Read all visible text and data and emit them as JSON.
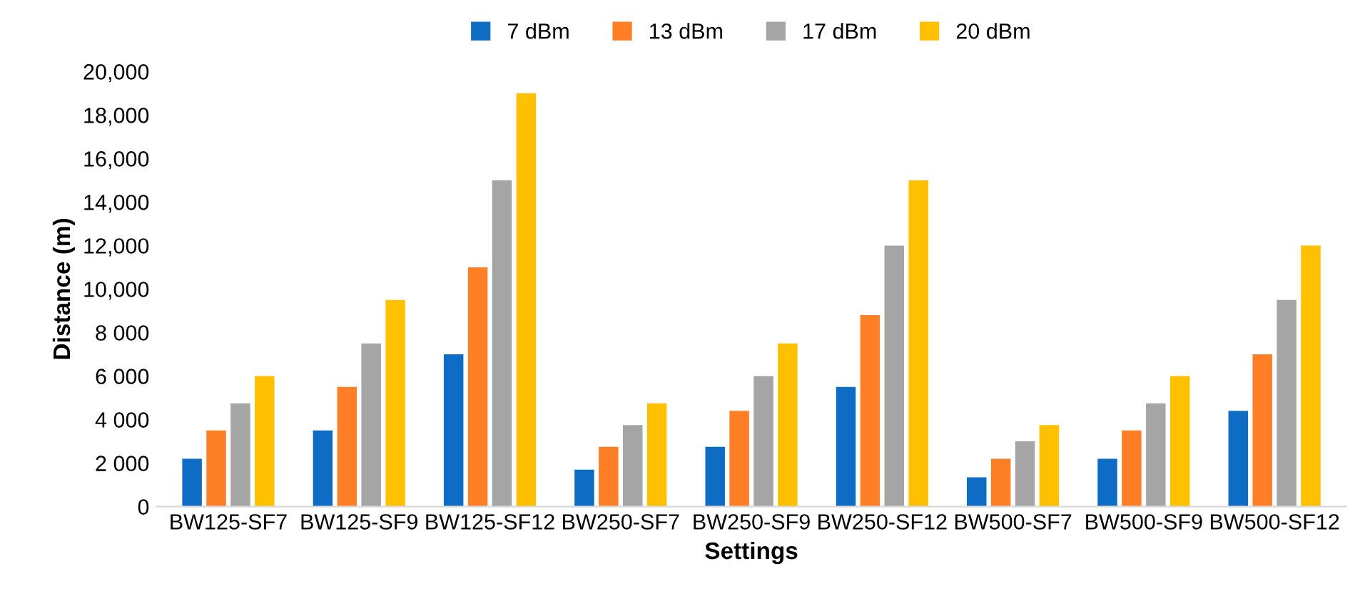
{
  "chart_data": {
    "type": "bar",
    "xlabel": "Settings",
    "ylabel": "Distance (m)",
    "categories": [
      "BW125-SF7",
      "BW125-SF9",
      "BW125-SF12",
      "BW250-SF7",
      "BW250-SF9",
      "BW250-SF12",
      "BW500-SF7",
      "BW500-SF9",
      "BW500-SF12"
    ],
    "series": [
      {
        "name": "7 dBm",
        "color": "#0f6cc4",
        "values": [
          2200,
          3500,
          7000,
          1700,
          2750,
          5500,
          1350,
          2200,
          4400
        ]
      },
      {
        "name": "13 dBm",
        "color": "#fe7f25",
        "values": [
          3500,
          5500,
          11000,
          2750,
          4400,
          8800,
          2200,
          3500,
          7000
        ]
      },
      {
        "name": "17 dBm",
        "color": "#a5a5a5",
        "values": [
          4750,
          7500,
          15000,
          3750,
          6000,
          12000,
          3000,
          4750,
          9500
        ]
      },
      {
        "name": "20 dBm",
        "color": "#ffc000",
        "values": [
          6000,
          9500,
          19000,
          4750,
          7500,
          15000,
          3750,
          6000,
          12000
        ]
      }
    ],
    "ylim": [
      0,
      20000
    ],
    "yticks": [
      0,
      {
        "value": 2000,
        "label": "2 000"
      },
      {
        "value": 4000,
        "label": "4 000"
      },
      {
        "value": 6000,
        "label": "6 000"
      },
      {
        "value": 8000,
        "label": "8 000"
      },
      {
        "value": 10000,
        "label": "10,000"
      },
      {
        "value": 12000,
        "label": "12,000"
      },
      {
        "value": 14000,
        "label": "14,000"
      },
      {
        "value": 16000,
        "label": "16,000"
      },
      {
        "value": 18000,
        "label": "18,000"
      },
      {
        "value": 20000,
        "label": "20,000"
      }
    ],
    "grid": false,
    "legend": "top"
  }
}
